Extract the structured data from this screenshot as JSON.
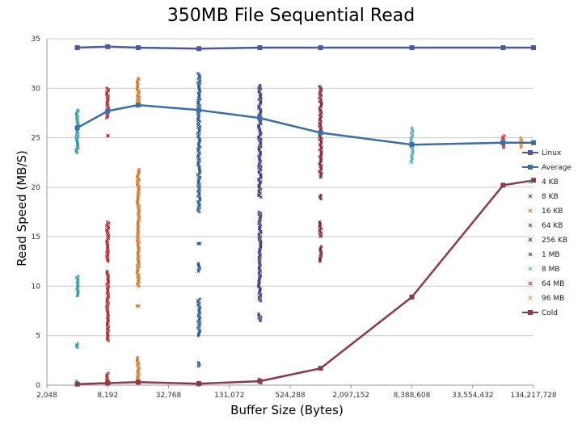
{
  "chart_data": {
    "type": "scatter",
    "title": "350MB File Sequential Read",
    "xlabel": "Buffer Size (Bytes)",
    "ylabel": "Read Speed (MB/S)",
    "x_scale": "log2",
    "xlim": [
      2048,
      134217728
    ],
    "ylim": [
      0,
      35
    ],
    "xticks": [
      {
        "value": 2048,
        "label": "2,048"
      },
      {
        "value": 8192,
        "label": "8,192"
      },
      {
        "value": 32768,
        "label": "32,768"
      },
      {
        "value": 131072,
        "label": "131,072"
      },
      {
        "value": 524288,
        "label": "524,288"
      },
      {
        "value": 2097152,
        "label": "2,097,152"
      },
      {
        "value": 8388608,
        "label": "8,388,608"
      },
      {
        "value": 33554432,
        "label": "33,554,432"
      },
      {
        "value": 134217728,
        "label": "134,217,728"
      }
    ],
    "yticks": [
      0,
      5,
      10,
      15,
      20,
      25,
      30,
      35
    ],
    "grid": "horizontal",
    "legend_position": "right",
    "lines": [
      {
        "name": "Linux",
        "color": "#4a5a9a",
        "marker": "square",
        "x": [
          4096,
          8192,
          16384,
          65536,
          262144,
          1048576,
          8388608,
          67108864,
          134217728
        ],
        "y": [
          34.1,
          34.2,
          34.1,
          34.0,
          34.1,
          34.1,
          34.1,
          34.1,
          34.1
        ]
      },
      {
        "name": "Average",
        "color": "#3a6ea5",
        "marker": "square",
        "x": [
          4096,
          8192,
          16384,
          65536,
          262144,
          1048576,
          8388608,
          67108864,
          134217728
        ],
        "y": [
          26.0,
          27.7,
          28.3,
          27.8,
          27.0,
          25.5,
          24.3,
          24.5,
          24.5
        ]
      },
      {
        "name": "Cold",
        "color": "#8b3a4a",
        "marker": "square",
        "x": [
          4096,
          8192,
          16384,
          65536,
          262144,
          1048576,
          8388608,
          67108864,
          134217728
        ],
        "y": [
          0.1,
          0.2,
          0.3,
          0.15,
          0.4,
          1.7,
          8.9,
          20.2,
          20.7
        ]
      }
    ],
    "scatter_series": [
      {
        "name": "4 KB",
        "color": "#2a9aaa",
        "x": 4096,
        "ranges": [
          [
            23.5,
            27.8
          ],
          [
            9.0,
            11.0
          ],
          [
            3.8,
            4.2
          ],
          [
            0.0,
            0.4
          ]
        ]
      },
      {
        "name": "8 KB",
        "color": "#b0282e",
        "x": 8192,
        "ranges": [
          [
            27.0,
            30.0
          ],
          [
            25.2,
            25.2
          ],
          [
            12.5,
            16.5
          ],
          [
            4.5,
            11.5
          ],
          [
            0.1,
            1.2
          ]
        ]
      },
      {
        "name": "16 KB",
        "color": "#d07a2a",
        "x": 16384,
        "ranges": [
          [
            28.3,
            31.0
          ],
          [
            10.0,
            21.8
          ],
          [
            8.0,
            8.0
          ],
          [
            0.2,
            2.8
          ]
        ]
      },
      {
        "name": "64 KB",
        "color": "#2e5a8a",
        "x": 65536,
        "ranges": [
          [
            17.5,
            31.5
          ],
          [
            14.3,
            14.3
          ],
          [
            11.5,
            12.3
          ],
          [
            5.0,
            8.7
          ],
          [
            1.9,
            2.3
          ],
          [
            0.0,
            0.3
          ]
        ]
      },
      {
        "name": "256 KB",
        "color": "#3a3f78",
        "x": 262144,
        "ranges": [
          [
            19.0,
            30.3
          ],
          [
            8.5,
            17.5
          ],
          [
            6.5,
            7.2
          ],
          [
            0.2,
            0.6
          ]
        ]
      },
      {
        "name": "1 MB",
        "color": "#7a2a3a",
        "x": 1048576,
        "ranges": [
          [
            21.0,
            30.2
          ],
          [
            18.8,
            19.2
          ],
          [
            15.0,
            16.5
          ],
          [
            12.5,
            14.0
          ]
        ]
      },
      {
        "name": "8 MB",
        "color": "#5ab0c8",
        "x": 8388608,
        "ranges": [
          [
            22.5,
            26.0
          ]
        ]
      },
      {
        "name": "64 MB",
        "color": "#c0303a",
        "x": 67108864,
        "ranges": [
          [
            24.0,
            25.2
          ]
        ]
      },
      {
        "name": "96 MB",
        "color": "#e09050",
        "x": 100663296,
        "ranges": [
          [
            24.0,
            25.0
          ]
        ]
      }
    ],
    "legend": [
      "Linux",
      "Average",
      "4 KB",
      "8 KB",
      "16 KB",
      "64 KB",
      "256 KB",
      "1 MB",
      "8 MB",
      "64 MB",
      "96 MB",
      "Cold"
    ]
  }
}
